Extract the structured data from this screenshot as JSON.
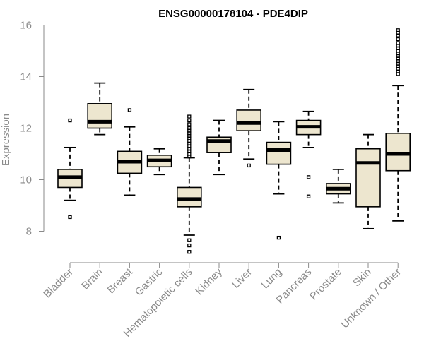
{
  "chart_data": {
    "type": "boxplot",
    "title": "ENSG00000178104 - PDE4DIP",
    "xlabel": "",
    "ylabel": "Expression",
    "ylim": [
      7,
      16.2
    ],
    "yticks": [
      8,
      10,
      12,
      14,
      16
    ],
    "grid": false,
    "colors": {
      "box_fill": "#ede6cf",
      "stroke": "#000000",
      "axis": "#8a8a8a"
    },
    "categories": [
      "Bladder",
      "Brain",
      "Breast",
      "Gastric",
      "Hematopoietic cells",
      "Kidney",
      "Liver",
      "Lung",
      "Pancreas",
      "Prostate",
      "Skin",
      "Unknown / Other"
    ],
    "boxes": [
      {
        "name": "Bladder",
        "whisker_low": 9.2,
        "q1": 9.7,
        "median": 10.1,
        "q3": 10.4,
        "whisker_high": 11.25,
        "outliers": [
          8.55,
          12.3
        ]
      },
      {
        "name": "Brain",
        "whisker_low": 11.75,
        "q1": 12.0,
        "median": 12.25,
        "q3": 12.95,
        "whisker_high": 13.75,
        "outliers": []
      },
      {
        "name": "Breast",
        "whisker_low": 9.4,
        "q1": 10.25,
        "median": 10.7,
        "q3": 11.1,
        "whisker_high": 12.05,
        "outliers": [
          12.7
        ]
      },
      {
        "name": "Gastric",
        "whisker_low": 10.2,
        "q1": 10.5,
        "median": 10.75,
        "q3": 10.95,
        "whisker_high": 11.2,
        "outliers": []
      },
      {
        "name": "Hematopoietic cells",
        "whisker_low": 7.85,
        "q1": 8.95,
        "median": 9.25,
        "q3": 9.7,
        "whisker_high": 10.85,
        "outliers": [
          10.9,
          11.0,
          11.1,
          11.2,
          11.3,
          11.4,
          11.5,
          11.6,
          11.7,
          11.8,
          11.9,
          12.0,
          12.15,
          12.3,
          12.45,
          7.65,
          7.45,
          7.2
        ]
      },
      {
        "name": "Kidney",
        "whisker_low": 10.2,
        "q1": 11.05,
        "median": 11.5,
        "q3": 11.65,
        "whisker_high": 12.3,
        "outliers": []
      },
      {
        "name": "Liver",
        "whisker_low": 10.8,
        "q1": 11.9,
        "median": 12.2,
        "q3": 12.7,
        "whisker_high": 13.5,
        "outliers": [
          10.55
        ]
      },
      {
        "name": "Lung",
        "whisker_low": 9.45,
        "q1": 10.6,
        "median": 11.15,
        "q3": 11.45,
        "whisker_high": 12.25,
        "outliers": [
          7.75
        ]
      },
      {
        "name": "Pancreas",
        "whisker_low": 11.25,
        "q1": 11.75,
        "median": 12.05,
        "q3": 12.3,
        "whisker_high": 12.65,
        "outliers": [
          10.1,
          9.35
        ]
      },
      {
        "name": "Prostate",
        "whisker_low": 9.1,
        "q1": 9.45,
        "median": 9.65,
        "q3": 9.85,
        "whisker_high": 10.4,
        "outliers": []
      },
      {
        "name": "Skin",
        "whisker_low": 8.1,
        "q1": 8.95,
        "median": 10.65,
        "q3": 11.2,
        "whisker_high": 11.75,
        "outliers": []
      },
      {
        "name": "Unknown / Other",
        "whisker_low": 8.4,
        "q1": 10.35,
        "median": 11.0,
        "q3": 11.8,
        "whisker_high": 13.65,
        "outliers": [
          14.1,
          14.2,
          14.3,
          14.4,
          14.5,
          14.6,
          14.7,
          14.8,
          14.9,
          15.0,
          15.1,
          15.2,
          15.3,
          15.45,
          15.6,
          15.7,
          15.8
        ]
      }
    ]
  }
}
